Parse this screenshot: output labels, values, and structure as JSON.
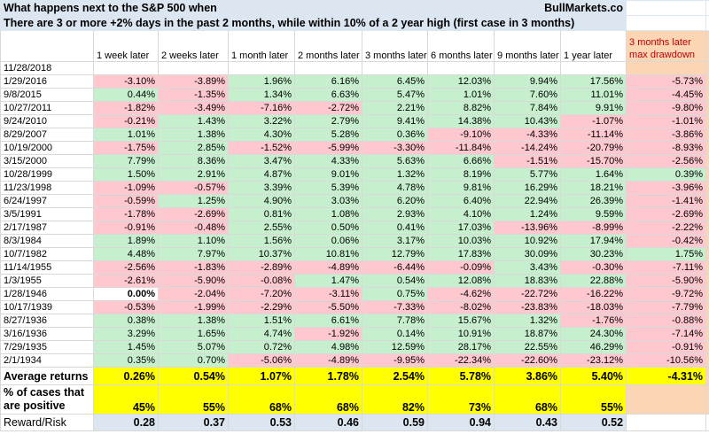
{
  "header": {
    "title": "What happens next to the S&P 500 when",
    "source": "BullMarkets.co",
    "subtitle": "There are 3 or more +2% days in the past 2 months, while within 10% of a 2 year high (first case in 3 months)"
  },
  "table": {
    "columns": [
      "1 week later",
      "2 weeks later",
      "1 month later",
      "2 months later",
      "3 months later",
      "6 months later",
      "9 months later",
      "1 year later",
      "3 months later max drawdown"
    ],
    "extra_column": "6",
    "rows": [
      {
        "date": "11/28/2018",
        "cells": []
      },
      {
        "date": "1/29/2016",
        "cells": [
          "-3.10%",
          "-3.89%",
          "1.96%",
          "6.16%",
          "6.45%",
          "12.03%",
          "9.94%",
          "17.56%",
          "-5.73%"
        ]
      },
      {
        "date": "9/8/2015",
        "cells": [
          "0.44%",
          "-1.35%",
          "1.34%",
          "6.63%",
          "5.47%",
          "1.01%",
          "7.60%",
          "11.01%",
          "-4.45%"
        ]
      },
      {
        "date": "10/27/2011",
        "cells": [
          "-1.82%",
          "-3.49%",
          "-7.16%",
          "-2.72%",
          "2.21%",
          "8.82%",
          "7.84%",
          "9.91%",
          "-9.80%"
        ]
      },
      {
        "date": "9/24/2010",
        "cells": [
          "-0.21%",
          "1.43%",
          "3.22%",
          "2.79%",
          "9.41%",
          "14.38%",
          "10.43%",
          "-1.07%",
          "-1.01%"
        ]
      },
      {
        "date": "8/29/2007",
        "cells": [
          "1.01%",
          "1.38%",
          "4.30%",
          "5.28%",
          "0.36%",
          "-9.10%",
          "-4.33%",
          "-11.14%",
          "-3.86%"
        ]
      },
      {
        "date": "10/19/2000",
        "cells": [
          "-1.75%",
          "2.85%",
          "-1.52%",
          "-5.99%",
          "-3.30%",
          "-11.84%",
          "-14.24%",
          "-20.79%",
          "-8.93%"
        ]
      },
      {
        "date": "3/15/2000",
        "cells": [
          "7.79%",
          "8.36%",
          "3.47%",
          "4.33%",
          "5.63%",
          "6.66%",
          "-1.51%",
          "-15.70%",
          "-2.56%"
        ]
      },
      {
        "date": "10/28/1999",
        "cells": [
          "1.50%",
          "2.91%",
          "4.87%",
          "9.01%",
          "1.32%",
          "8.19%",
          "5.77%",
          "1.64%",
          "0.39%"
        ]
      },
      {
        "date": "11/23/1998",
        "cells": [
          "-1.09%",
          "-0.57%",
          "3.39%",
          "5.39%",
          "4.78%",
          "9.81%",
          "16.29%",
          "18.21%",
          "-3.96%"
        ]
      },
      {
        "date": "6/24/1997",
        "cells": [
          "-0.59%",
          "1.25%",
          "4.90%",
          "3.03%",
          "6.20%",
          "6.40%",
          "22.94%",
          "26.39%",
          "-1.41%"
        ]
      },
      {
        "date": "3/5/1991",
        "cells": [
          "-1.78%",
          "-2.69%",
          "0.81%",
          "1.08%",
          "2.93%",
          "4.10%",
          "1.24%",
          "9.59%",
          "-2.69%"
        ]
      },
      {
        "date": "2/17/1987",
        "cells": [
          "-0.91%",
          "-0.48%",
          "2.55%",
          "0.50%",
          "0.41%",
          "17.03%",
          "-13.96%",
          "-8.99%",
          "-2.22%"
        ]
      },
      {
        "date": "8/3/1984",
        "cells": [
          "1.89%",
          "1.10%",
          "1.56%",
          "0.06%",
          "3.17%",
          "10.03%",
          "10.92%",
          "17.94%",
          "-0.42%"
        ]
      },
      {
        "date": "10/7/1982",
        "cells": [
          "4.48%",
          "7.97%",
          "10.37%",
          "10.81%",
          "12.79%",
          "17.83%",
          "30.09%",
          "30.23%",
          "1.75%"
        ]
      },
      {
        "date": "11/14/1955",
        "cells": [
          "-2.56%",
          "-1.83%",
          "-2.89%",
          "-4.89%",
          "-6.44%",
          "-0.09%",
          "3.43%",
          "-0.30%",
          "-7.11%"
        ]
      },
      {
        "date": "1/3/1955",
        "cells": [
          "-2.61%",
          "-5.90%",
          "-0.08%",
          "1.47%",
          "0.54%",
          "12.08%",
          "18.83%",
          "22.88%",
          "-5.90%"
        ]
      },
      {
        "date": "1/28/1946",
        "cells": [
          "0.00%",
          "-2.04%",
          "-7.20%",
          "-3.11%",
          "0.75%",
          "-4.62%",
          "-22.72%",
          "-16.22%",
          "-9.72%"
        ]
      },
      {
        "date": "10/17/1939",
        "cells": [
          "-0.53%",
          "-1.99%",
          "-2.29%",
          "-5.50%",
          "-7.33%",
          "-8.02%",
          "-23.83%",
          "-18.03%",
          "-7.79%"
        ]
      },
      {
        "date": "8/27/1936",
        "cells": [
          "0.38%",
          "1.38%",
          "1.51%",
          "6.61%",
          "7.78%",
          "15.67%",
          "1.32%",
          "-1.76%",
          "-0.88%"
        ]
      },
      {
        "date": "3/16/1936",
        "cells": [
          "3.29%",
          "1.65%",
          "4.74%",
          "-1.92%",
          "0.14%",
          "10.91%",
          "18.87%",
          "24.30%",
          "-7.14%"
        ]
      },
      {
        "date": "7/29/1935",
        "cells": [
          "1.45%",
          "5.07%",
          "0.72%",
          "4.98%",
          "12.59%",
          "28.17%",
          "22.55%",
          "46.29%",
          "-0.91%"
        ]
      },
      {
        "date": "2/1/1934",
        "cells": [
          "0.35%",
          "0.70%",
          "-5.06%",
          "-4.89%",
          "-9.95%",
          "-22.34%",
          "-22.60%",
          "-23.12%",
          "-10.56%"
        ]
      }
    ],
    "average": {
      "label": "Average returns",
      "cells": [
        "0.26%",
        "0.54%",
        "1.07%",
        "1.78%",
        "2.54%",
        "5.78%",
        "3.86%",
        "5.40%",
        "-4.31%"
      ]
    },
    "positive": {
      "label": "% of cases that are positive",
      "cells": [
        "45%",
        "55%",
        "68%",
        "68%",
        "82%",
        "73%",
        "68%",
        "55%"
      ]
    },
    "reward_risk": {
      "label": "Reward/Risk",
      "cells": [
        "0.28",
        "0.37",
        "0.53",
        "0.46",
        "0.59",
        "0.94",
        "0.43",
        "0.52"
      ]
    }
  }
}
